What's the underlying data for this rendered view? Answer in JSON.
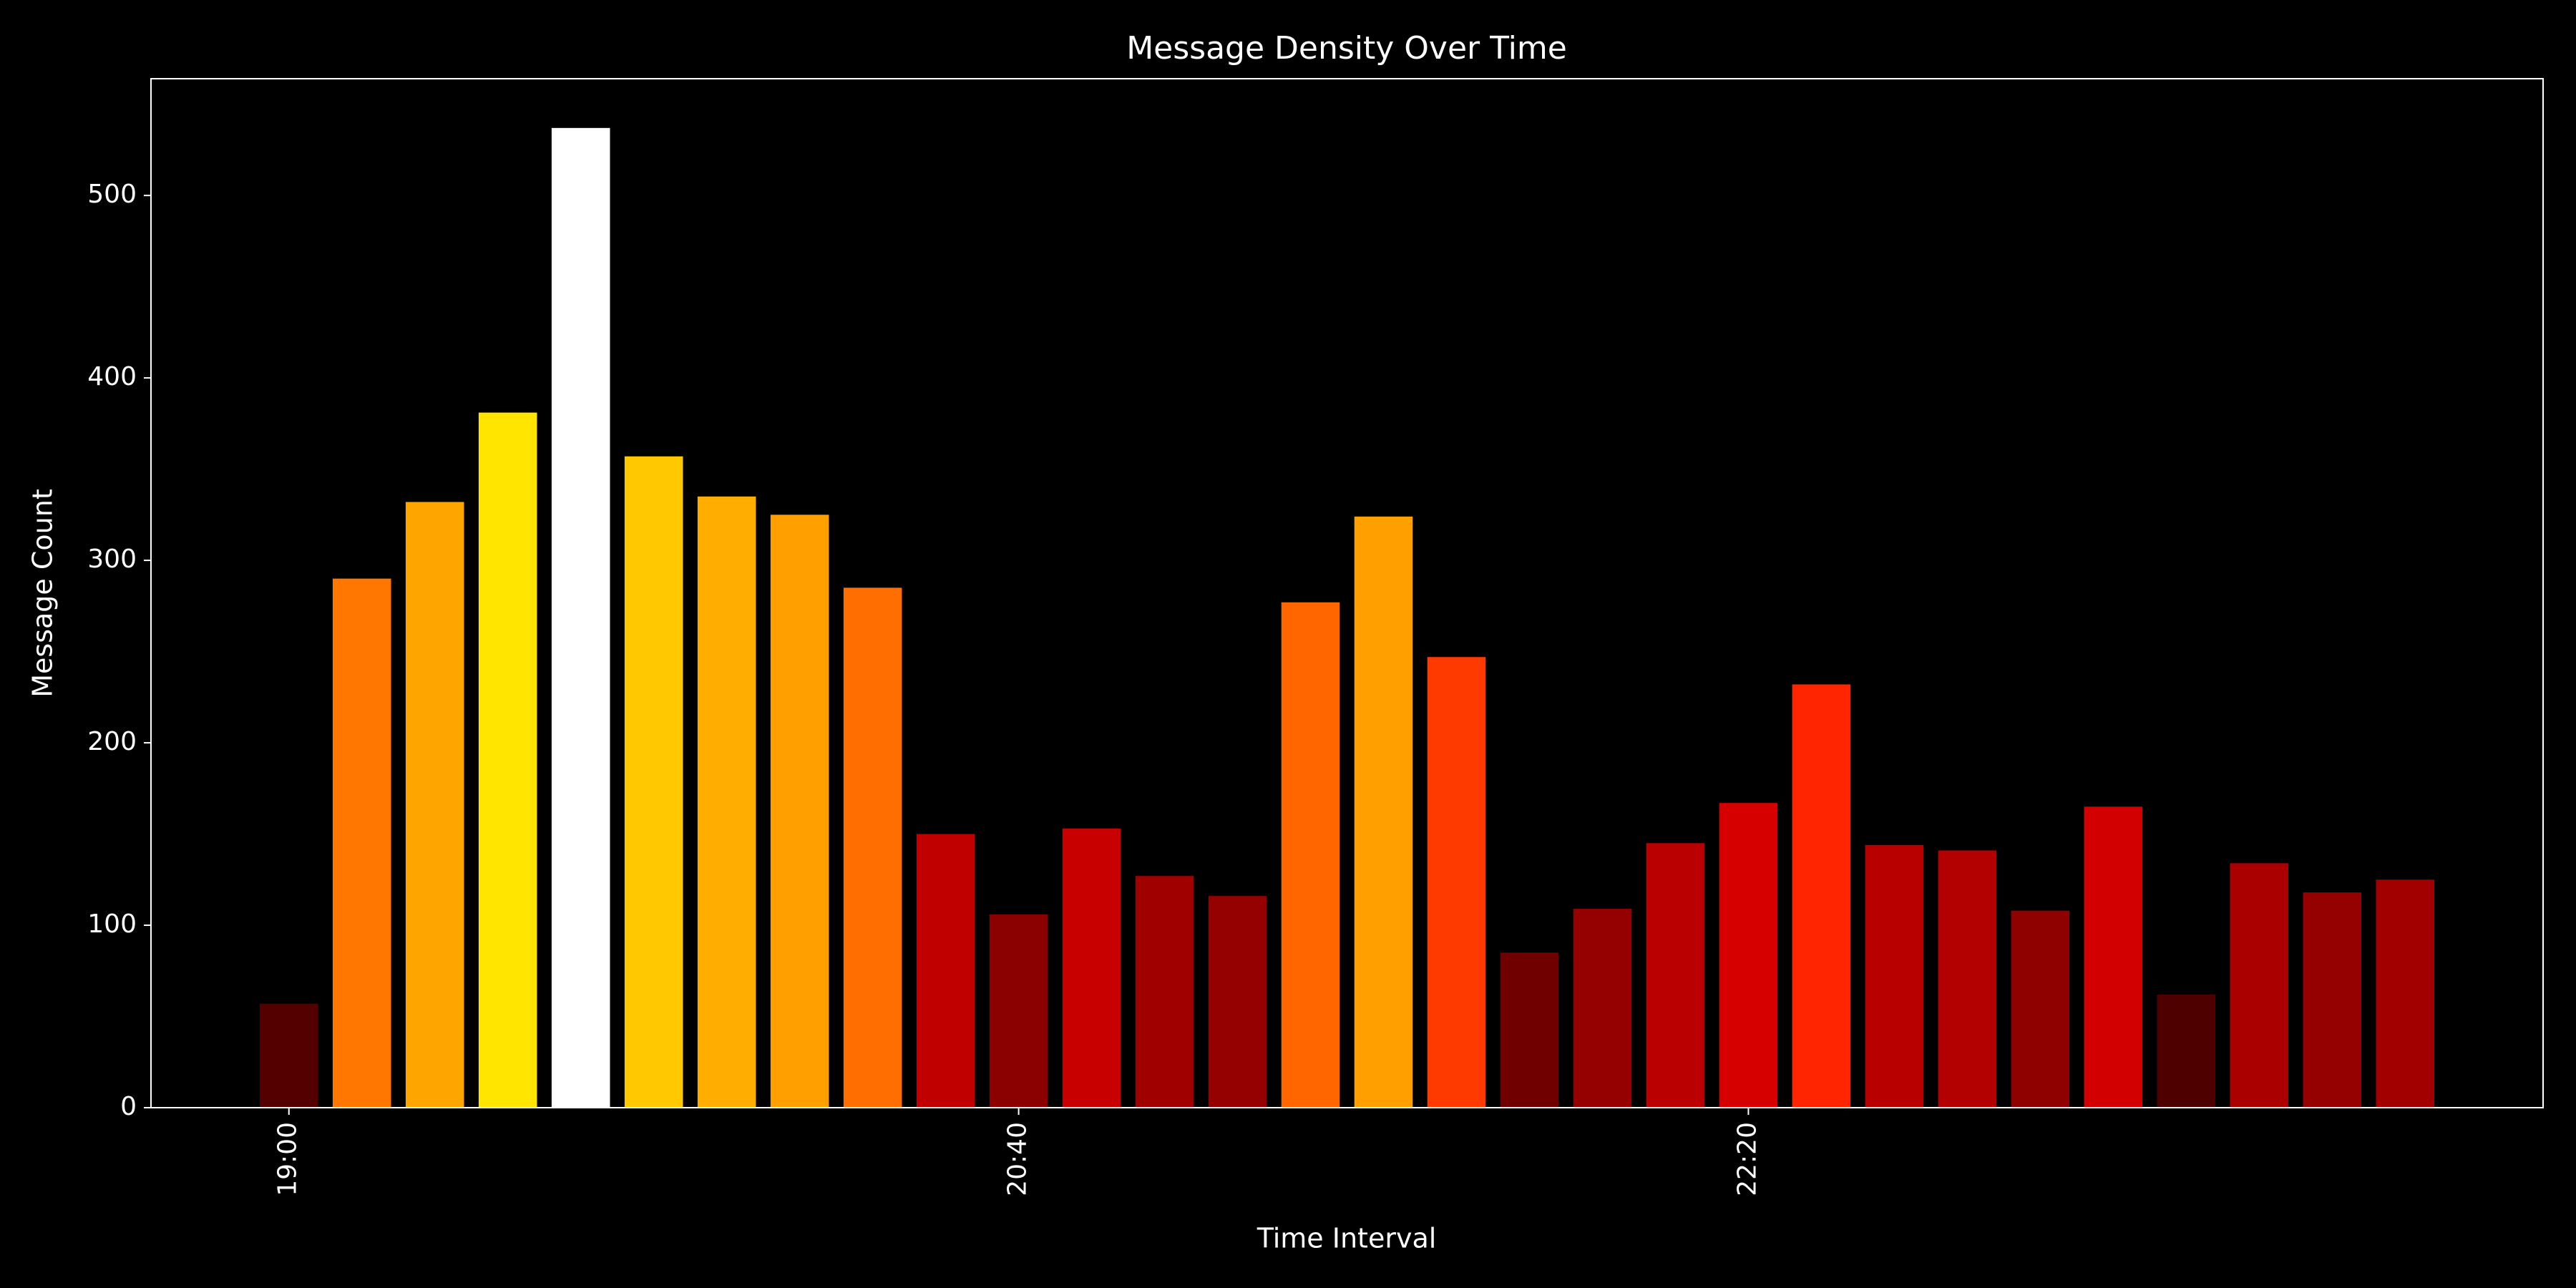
{
  "chart_data": {
    "type": "bar",
    "title": "Message Density Over Time",
    "x_label": "Time Interval",
    "y_label": "Message Count",
    "categories": [
      "19:00",
      null,
      null,
      null,
      null,
      null,
      null,
      null,
      null,
      null,
      "20:40",
      null,
      null,
      null,
      null,
      null,
      null,
      null,
      null,
      null,
      "22:20",
      null,
      null,
      null,
      null,
      null,
      null,
      null,
      null,
      null
    ],
    "values": [
      57,
      290,
      332,
      381,
      537,
      357,
      335,
      325,
      285,
      150,
      106,
      153,
      127,
      116,
      277,
      324,
      247,
      85,
      109,
      145,
      167,
      232,
      144,
      141,
      108,
      165,
      62,
      134,
      118,
      125
    ],
    "colors": [
      "#550000",
      "#ff7700",
      "#ffa500",
      "#ffe500",
      "#ffffff",
      "#ffc800",
      "#ffad00",
      "#ffa000",
      "#ff6e00",
      "#c00000",
      "#8b0000",
      "#c80000",
      "#a00000",
      "#950000",
      "#ff6600",
      "#ff9f00",
      "#ff3a00",
      "#700000",
      "#950000",
      "#ba0000",
      "#d60000",
      "#ff2500",
      "#b80000",
      "#b30000",
      "#8f0000",
      "#d20000",
      "#4e0000",
      "#ab0000",
      "#950000",
      "#a20000"
    ],
    "ylim": [
      0,
      564
    ],
    "yticks": [
      0,
      100,
      200,
      300,
      400,
      500
    ],
    "grid": false
  }
}
